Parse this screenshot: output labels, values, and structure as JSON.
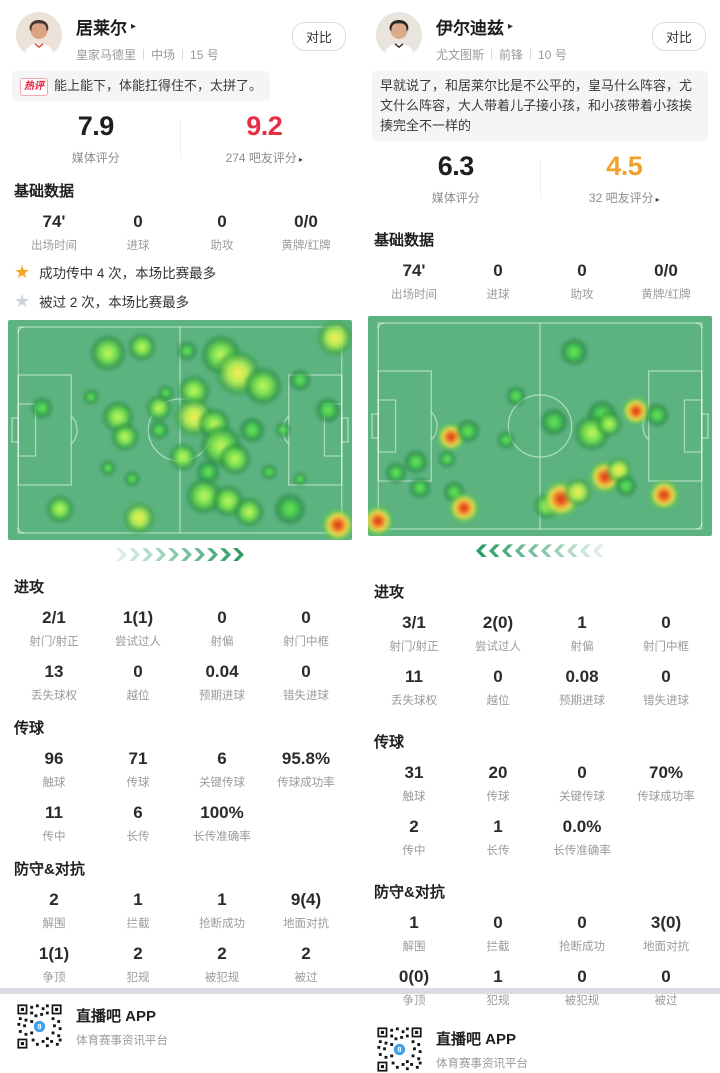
{
  "icons": {
    "caret": "▸",
    "star": "★"
  },
  "colors": {
    "fan_red": "#e62e45",
    "fan_gold": "#f0a32b",
    "pitch_green": "#5cb380",
    "chevron_green": "#2a9d64",
    "hot_badge_red": "#e5223d"
  },
  "players": [
    {
      "name": "居莱尔",
      "team": "皇家马德里",
      "position": "中场",
      "number": "15 号",
      "compare_label": "对比",
      "quote_badge": "热评",
      "quote": "能上能下，体能扛得住不，太拼了。",
      "media_score": "7.9",
      "media_score_label": "媒体评分",
      "fan_score": "9.2",
      "fan_score_label": "274 吧友评分",
      "basic": {
        "title": "基础数据",
        "items": [
          {
            "v": "74'",
            "l": "出场时间"
          },
          {
            "v": "0",
            "l": "进球"
          },
          {
            "v": "0",
            "l": "助攻"
          },
          {
            "v": "0/0",
            "l": "黄牌/红牌"
          }
        ]
      },
      "highlights": [
        {
          "icon": "gold",
          "text": "成功传中 4 次，本场比赛最多"
        },
        {
          "icon": "gray",
          "text": "被过 2 次，本场比赛最多"
        }
      ],
      "heatmap": {
        "direction": "right",
        "points": [
          [
            95,
            8,
            36,
            3
          ],
          [
            29,
            15,
            36,
            2
          ],
          [
            39,
            12,
            28,
            2
          ],
          [
            52,
            14,
            20,
            1
          ],
          [
            62,
            16,
            40,
            2
          ],
          [
            67,
            24,
            46,
            3
          ],
          [
            74,
            30,
            38,
            2
          ],
          [
            85,
            27,
            22,
            1
          ],
          [
            10,
            40,
            22,
            1
          ],
          [
            24,
            35,
            16,
            1
          ],
          [
            32,
            44,
            32,
            2
          ],
          [
            34,
            53,
            28,
            2
          ],
          [
            44,
            40,
            26,
            2
          ],
          [
            46,
            33,
            16,
            1
          ],
          [
            54,
            32,
            32,
            2
          ],
          [
            54,
            44,
            40,
            3
          ],
          [
            44,
            50,
            20,
            1
          ],
          [
            60,
            47,
            32,
            2
          ],
          [
            62,
            57,
            42,
            2
          ],
          [
            66,
            63,
            32,
            2
          ],
          [
            71,
            50,
            26,
            1
          ],
          [
            80,
            50,
            16,
            1
          ],
          [
            93,
            41,
            26,
            1
          ],
          [
            29,
            67,
            16,
            1
          ],
          [
            36,
            72,
            16,
            1
          ],
          [
            58,
            69,
            24,
            1
          ],
          [
            76,
            69,
            16,
            1
          ],
          [
            85,
            72,
            14,
            1
          ],
          [
            51,
            62,
            28,
            2
          ],
          [
            57,
            80,
            36,
            2
          ],
          [
            64,
            82,
            32,
            2
          ],
          [
            70,
            87,
            30,
            2
          ],
          [
            82,
            86,
            32,
            1
          ],
          [
            15,
            86,
            28,
            2
          ],
          [
            38,
            90,
            32,
            3
          ],
          [
            96,
            93,
            32,
            4
          ]
        ]
      },
      "sections": [
        {
          "title": "进攻",
          "items": [
            {
              "v": "2/1",
              "l": "射门/射正"
            },
            {
              "v": "1(1)",
              "l": "尝试过人"
            },
            {
              "v": "0",
              "l": "射偏"
            },
            {
              "v": "0",
              "l": "射门中框"
            },
            {
              "v": "13",
              "l": "丢失球权"
            },
            {
              "v": "0",
              "l": "越位"
            },
            {
              "v": "0.04",
              "l": "预期进球"
            },
            {
              "v": "0",
              "l": "错失进球"
            }
          ]
        },
        {
          "title": "传球",
          "items": [
            {
              "v": "96",
              "l": "触球"
            },
            {
              "v": "71",
              "l": "传球"
            },
            {
              "v": "6",
              "l": "关键传球"
            },
            {
              "v": "95.8%",
              "l": "传球成功率"
            },
            {
              "v": "11",
              "l": "传中"
            },
            {
              "v": "6",
              "l": "长传"
            },
            {
              "v": "100%",
              "l": "长传准确率"
            }
          ]
        },
        {
          "title": "防守&对抗",
          "items": [
            {
              "v": "2",
              "l": "解围"
            },
            {
              "v": "1",
              "l": "拦截"
            },
            {
              "v": "1",
              "l": "抢断成功"
            },
            {
              "v": "9(4)",
              "l": "地面对抗"
            },
            {
              "v": "1(1)",
              "l": "争顶"
            },
            {
              "v": "2",
              "l": "犯规"
            },
            {
              "v": "2",
              "l": "被犯规"
            },
            {
              "v": "2",
              "l": "被过"
            }
          ]
        }
      ],
      "footer": {
        "app": "直播吧 APP",
        "tagline": "体育赛事资讯平台"
      }
    },
    {
      "name": "伊尔迪兹",
      "team": "尤文图斯",
      "position": "前锋",
      "number": "10 号",
      "compare_label": "对比",
      "quote": "早就说了，和居莱尔比是不公平的，皇马什么阵容，尤文什么阵容，大人带着儿子接小孩，和小孩带着小孩挨揍完全不一样的",
      "media_score": "6.3",
      "media_score_label": "媒体评分",
      "fan_score": "4.5",
      "fan_score_label": "32 吧友评分",
      "basic": {
        "title": "基础数据",
        "items": [
          {
            "v": "74'",
            "l": "出场时间"
          },
          {
            "v": "0",
            "l": "进球"
          },
          {
            "v": "0",
            "l": "助攻"
          },
          {
            "v": "0/0",
            "l": "黄牌/红牌"
          }
        ]
      },
      "highlights": [],
      "heatmap": {
        "direction": "left",
        "points": [
          [
            60,
            16,
            28,
            1
          ],
          [
            43,
            36,
            20,
            1
          ],
          [
            54,
            48,
            28,
            1
          ],
          [
            40,
            56,
            18,
            1
          ],
          [
            68,
            45,
            30,
            1
          ],
          [
            65,
            53,
            36,
            2
          ],
          [
            70,
            49,
            26,
            2
          ],
          [
            78,
            43,
            28,
            4
          ],
          [
            84,
            45,
            24,
            1
          ],
          [
            24,
            55,
            28,
            4
          ],
          [
            29,
            52,
            24,
            1
          ],
          [
            14,
            66,
            24,
            1
          ],
          [
            8,
            71,
            22,
            1
          ],
          [
            23,
            65,
            18,
            1
          ],
          [
            15,
            78,
            22,
            1
          ],
          [
            25,
            80,
            22,
            1
          ],
          [
            28,
            87,
            30,
            4
          ],
          [
            3,
            93,
            30,
            4
          ],
          [
            52,
            86,
            26,
            2
          ],
          [
            56,
            83,
            36,
            4
          ],
          [
            61,
            80,
            28,
            3
          ],
          [
            69,
            73,
            32,
            4
          ],
          [
            73,
            70,
            26,
            3
          ],
          [
            75,
            77,
            22,
            1
          ],
          [
            86,
            81,
            30,
            4
          ]
        ]
      },
      "sections": [
        {
          "title": "进攻",
          "items": [
            {
              "v": "3/1",
              "l": "射门/射正"
            },
            {
              "v": "2(0)",
              "l": "尝试过人"
            },
            {
              "v": "1",
              "l": "射偏"
            },
            {
              "v": "0",
              "l": "射门中框"
            },
            {
              "v": "11",
              "l": "丢失球权"
            },
            {
              "v": "0",
              "l": "越位"
            },
            {
              "v": "0.08",
              "l": "预期进球"
            },
            {
              "v": "0",
              "l": "错失进球"
            }
          ]
        },
        {
          "title": "传球",
          "items": [
            {
              "v": "31",
              "l": "触球"
            },
            {
              "v": "20",
              "l": "传球"
            },
            {
              "v": "0",
              "l": "关键传球"
            },
            {
              "v": "70%",
              "l": "传球成功率"
            },
            {
              "v": "2",
              "l": "传中"
            },
            {
              "v": "1",
              "l": "长传"
            },
            {
              "v": "0.0%",
              "l": "长传准确率"
            }
          ]
        },
        {
          "title": "防守&对抗",
          "items": [
            {
              "v": "1",
              "l": "解围"
            },
            {
              "v": "0",
              "l": "拦截"
            },
            {
              "v": "0",
              "l": "抢断成功"
            },
            {
              "v": "3(0)",
              "l": "地面对抗"
            },
            {
              "v": "0(0)",
              "l": "争顶"
            },
            {
              "v": "1",
              "l": "犯规"
            },
            {
              "v": "0",
              "l": "被犯规"
            },
            {
              "v": "0",
              "l": "被过"
            }
          ]
        }
      ],
      "footer": {
        "app": "直播吧 APP",
        "tagline": "体育赛事资讯平台"
      }
    }
  ]
}
